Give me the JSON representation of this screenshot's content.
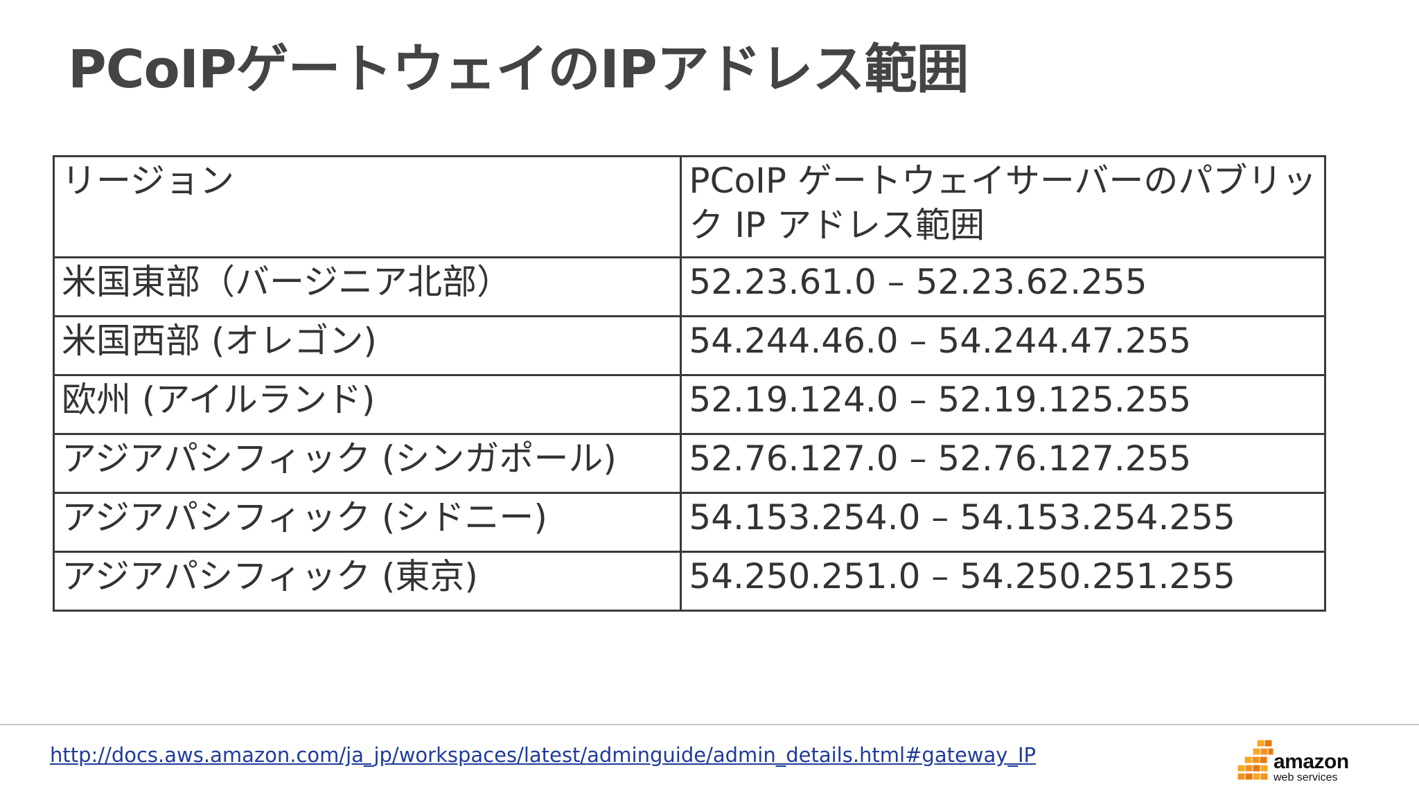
{
  "slide": {
    "title": "PCoIPゲートウェイのIPアドレス範囲"
  },
  "table": {
    "header": {
      "region": "リージョン",
      "range": "PCoIP ゲートウェイサーバーのパブリック IP アドレス範囲"
    },
    "rows": [
      {
        "region": "米国東部（バージニア北部）",
        "range": "52.23.61.0 – 52.23.62.255"
      },
      {
        "region": "米国西部 (オレゴン)",
        "range": "54.244.46.0 – 54.244.47.255"
      },
      {
        "region": "欧州 (アイルランド)",
        "range": "52.19.124.0 – 52.19.125.255"
      },
      {
        "region": "アジアパシフィック (シンガポール)",
        "range": "52.76.127.0 – 52.76.127.255"
      },
      {
        "region": "アジアパシフィック (シドニー)",
        "range": "54.153.254.0 – 54.153.254.255"
      },
      {
        "region": "アジアパシフィック (東京)",
        "range": "54.250.251.0 – 54.250.251.255"
      }
    ]
  },
  "footer": {
    "link_text": "http://docs.aws.amazon.com/ja_jp/workspaces/latest/adminguide/admin_details.html#gateway_IP",
    "logo": {
      "brand": "amazon",
      "sub": "web services",
      "icon": "aws-cubes-icon",
      "colors": {
        "cube_light": "#F7A823",
        "cube_dark": "#E47911",
        "cube_mid": "#F19322"
      }
    }
  }
}
